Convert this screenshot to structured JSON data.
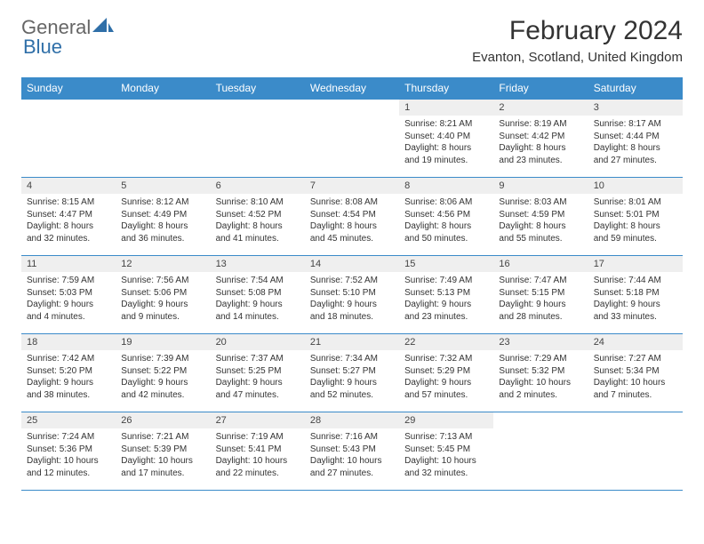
{
  "brand": {
    "name_part1": "General",
    "name_part2": "Blue"
  },
  "title": {
    "month": "February 2024",
    "location": "Evanton, Scotland, United Kingdom"
  },
  "colors": {
    "header_bg": "#3b8bc9",
    "header_text": "#ffffff",
    "daynum_bg": "#efefef",
    "border": "#3b8bc9",
    "text": "#333333",
    "brand_gray": "#666666",
    "brand_blue": "#2f6fa8"
  },
  "weekdays": [
    "Sunday",
    "Monday",
    "Tuesday",
    "Wednesday",
    "Thursday",
    "Friday",
    "Saturday"
  ],
  "weeks": [
    [
      {
        "empty": true
      },
      {
        "empty": true
      },
      {
        "empty": true
      },
      {
        "empty": true
      },
      {
        "day": "1",
        "sunrise": "Sunrise: 8:21 AM",
        "sunset": "Sunset: 4:40 PM",
        "daylight": "Daylight: 8 hours and 19 minutes."
      },
      {
        "day": "2",
        "sunrise": "Sunrise: 8:19 AM",
        "sunset": "Sunset: 4:42 PM",
        "daylight": "Daylight: 8 hours and 23 minutes."
      },
      {
        "day": "3",
        "sunrise": "Sunrise: 8:17 AM",
        "sunset": "Sunset: 4:44 PM",
        "daylight": "Daylight: 8 hours and 27 minutes."
      }
    ],
    [
      {
        "day": "4",
        "sunrise": "Sunrise: 8:15 AM",
        "sunset": "Sunset: 4:47 PM",
        "daylight": "Daylight: 8 hours and 32 minutes."
      },
      {
        "day": "5",
        "sunrise": "Sunrise: 8:12 AM",
        "sunset": "Sunset: 4:49 PM",
        "daylight": "Daylight: 8 hours and 36 minutes."
      },
      {
        "day": "6",
        "sunrise": "Sunrise: 8:10 AM",
        "sunset": "Sunset: 4:52 PM",
        "daylight": "Daylight: 8 hours and 41 minutes."
      },
      {
        "day": "7",
        "sunrise": "Sunrise: 8:08 AM",
        "sunset": "Sunset: 4:54 PM",
        "daylight": "Daylight: 8 hours and 45 minutes."
      },
      {
        "day": "8",
        "sunrise": "Sunrise: 8:06 AM",
        "sunset": "Sunset: 4:56 PM",
        "daylight": "Daylight: 8 hours and 50 minutes."
      },
      {
        "day": "9",
        "sunrise": "Sunrise: 8:03 AM",
        "sunset": "Sunset: 4:59 PM",
        "daylight": "Daylight: 8 hours and 55 minutes."
      },
      {
        "day": "10",
        "sunrise": "Sunrise: 8:01 AM",
        "sunset": "Sunset: 5:01 PM",
        "daylight": "Daylight: 8 hours and 59 minutes."
      }
    ],
    [
      {
        "day": "11",
        "sunrise": "Sunrise: 7:59 AM",
        "sunset": "Sunset: 5:03 PM",
        "daylight": "Daylight: 9 hours and 4 minutes."
      },
      {
        "day": "12",
        "sunrise": "Sunrise: 7:56 AM",
        "sunset": "Sunset: 5:06 PM",
        "daylight": "Daylight: 9 hours and 9 minutes."
      },
      {
        "day": "13",
        "sunrise": "Sunrise: 7:54 AM",
        "sunset": "Sunset: 5:08 PM",
        "daylight": "Daylight: 9 hours and 14 minutes."
      },
      {
        "day": "14",
        "sunrise": "Sunrise: 7:52 AM",
        "sunset": "Sunset: 5:10 PM",
        "daylight": "Daylight: 9 hours and 18 minutes."
      },
      {
        "day": "15",
        "sunrise": "Sunrise: 7:49 AM",
        "sunset": "Sunset: 5:13 PM",
        "daylight": "Daylight: 9 hours and 23 minutes."
      },
      {
        "day": "16",
        "sunrise": "Sunrise: 7:47 AM",
        "sunset": "Sunset: 5:15 PM",
        "daylight": "Daylight: 9 hours and 28 minutes."
      },
      {
        "day": "17",
        "sunrise": "Sunrise: 7:44 AM",
        "sunset": "Sunset: 5:18 PM",
        "daylight": "Daylight: 9 hours and 33 minutes."
      }
    ],
    [
      {
        "day": "18",
        "sunrise": "Sunrise: 7:42 AM",
        "sunset": "Sunset: 5:20 PM",
        "daylight": "Daylight: 9 hours and 38 minutes."
      },
      {
        "day": "19",
        "sunrise": "Sunrise: 7:39 AM",
        "sunset": "Sunset: 5:22 PM",
        "daylight": "Daylight: 9 hours and 42 minutes."
      },
      {
        "day": "20",
        "sunrise": "Sunrise: 7:37 AM",
        "sunset": "Sunset: 5:25 PM",
        "daylight": "Daylight: 9 hours and 47 minutes."
      },
      {
        "day": "21",
        "sunrise": "Sunrise: 7:34 AM",
        "sunset": "Sunset: 5:27 PM",
        "daylight": "Daylight: 9 hours and 52 minutes."
      },
      {
        "day": "22",
        "sunrise": "Sunrise: 7:32 AM",
        "sunset": "Sunset: 5:29 PM",
        "daylight": "Daylight: 9 hours and 57 minutes."
      },
      {
        "day": "23",
        "sunrise": "Sunrise: 7:29 AM",
        "sunset": "Sunset: 5:32 PM",
        "daylight": "Daylight: 10 hours and 2 minutes."
      },
      {
        "day": "24",
        "sunrise": "Sunrise: 7:27 AM",
        "sunset": "Sunset: 5:34 PM",
        "daylight": "Daylight: 10 hours and 7 minutes."
      }
    ],
    [
      {
        "day": "25",
        "sunrise": "Sunrise: 7:24 AM",
        "sunset": "Sunset: 5:36 PM",
        "daylight": "Daylight: 10 hours and 12 minutes."
      },
      {
        "day": "26",
        "sunrise": "Sunrise: 7:21 AM",
        "sunset": "Sunset: 5:39 PM",
        "daylight": "Daylight: 10 hours and 17 minutes."
      },
      {
        "day": "27",
        "sunrise": "Sunrise: 7:19 AM",
        "sunset": "Sunset: 5:41 PM",
        "daylight": "Daylight: 10 hours and 22 minutes."
      },
      {
        "day": "28",
        "sunrise": "Sunrise: 7:16 AM",
        "sunset": "Sunset: 5:43 PM",
        "daylight": "Daylight: 10 hours and 27 minutes."
      },
      {
        "day": "29",
        "sunrise": "Sunrise: 7:13 AM",
        "sunset": "Sunset: 5:45 PM",
        "daylight": "Daylight: 10 hours and 32 minutes."
      },
      {
        "empty": true
      },
      {
        "empty": true
      }
    ]
  ]
}
